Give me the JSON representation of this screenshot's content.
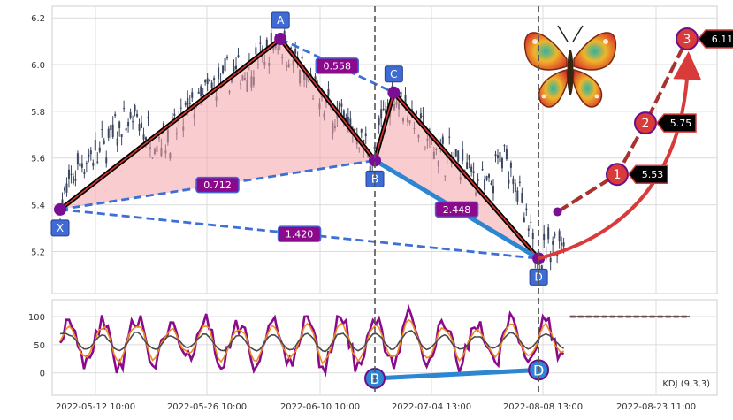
{
  "chart_data": [
    {
      "type": "candlestick",
      "title": "",
      "xlabel": "",
      "ylabel": "",
      "ylim": [
        5.02,
        6.25
      ],
      "yticks": [
        5.2,
        5.4,
        5.6,
        5.8,
        6.0,
        6.2
      ],
      "xticks": [
        "2022-05-12 10:00",
        "2022-05-26 10:00",
        "2022-06-10 10:00",
        "2022-07-04 13:00",
        "2022-08-08 13:00",
        "2022-08-23 11:00"
      ],
      "grid": true,
      "price_path": [
        {
          "t": 0.0,
          "price": 5.38
        },
        {
          "t": 0.03,
          "price": 5.58
        },
        {
          "t": 0.06,
          "price": 5.62
        },
        {
          "t": 0.09,
          "price": 5.72
        },
        {
          "t": 0.12,
          "price": 5.76
        },
        {
          "t": 0.15,
          "price": 5.68
        },
        {
          "t": 0.18,
          "price": 5.7
        },
        {
          "t": 0.21,
          "price": 5.82
        },
        {
          "t": 0.24,
          "price": 5.9
        },
        {
          "t": 0.27,
          "price": 5.95
        },
        {
          "t": 0.3,
          "price": 5.98
        },
        {
          "t": 0.33,
          "price": 6.05
        },
        {
          "t": 0.35,
          "price": 6.11
        },
        {
          "t": 0.38,
          "price": 5.98
        },
        {
          "t": 0.41,
          "price": 5.85
        },
        {
          "t": 0.44,
          "price": 5.78
        },
        {
          "t": 0.47,
          "price": 5.72
        },
        {
          "t": 0.5,
          "price": 5.59
        },
        {
          "t": 0.51,
          "price": 5.75
        },
        {
          "t": 0.53,
          "price": 5.88
        },
        {
          "t": 0.56,
          "price": 5.78
        },
        {
          "t": 0.59,
          "price": 5.65
        },
        {
          "t": 0.62,
          "price": 5.6
        },
        {
          "t": 0.65,
          "price": 5.55
        },
        {
          "t": 0.68,
          "price": 5.45
        },
        {
          "t": 0.7,
          "price": 5.6
        },
        {
          "t": 0.72,
          "price": 5.56
        },
        {
          "t": 0.74,
          "price": 5.3
        },
        {
          "t": 0.76,
          "price": 5.17
        },
        {
          "t": 0.78,
          "price": 5.24
        },
        {
          "t": 0.8,
          "price": 5.27
        }
      ],
      "pattern": {
        "points": [
          {
            "label": "X",
            "t": 0.0,
            "price": 5.38
          },
          {
            "label": "A",
            "t": 0.35,
            "price": 6.11
          },
          {
            "label": "B",
            "t": 0.5,
            "price": 5.59
          },
          {
            "label": "C",
            "t": 0.53,
            "price": 5.88
          },
          {
            "label": "D",
            "t": 0.76,
            "price": 5.17
          }
        ],
        "ratios": [
          {
            "value": "0.558",
            "from": "A",
            "to": "C"
          },
          {
            "value": "0.712",
            "from": "X",
            "to": "B"
          },
          {
            "value": "1.420",
            "from": "X",
            "to": "D"
          },
          {
            "value": "2.448",
            "from": "B",
            "to": "D"
          }
        ],
        "vertical_markers": [
          "B",
          "D"
        ]
      },
      "targets": [
        {
          "label": "1",
          "value": "5.53",
          "price": 5.53
        },
        {
          "label": "2",
          "value": "5.75",
          "price": 5.75
        },
        {
          "label": "3",
          "value": "6.11",
          "price": 6.11
        }
      ],
      "projection_start": {
        "t": 0.79,
        "price": 5.37
      },
      "colors": {
        "fill": "#f4a3a8",
        "dash": "#3d6fd6",
        "label_box": "#8b0a8b",
        "point_box": "#3e6cd4",
        "marker": "#7a0e94",
        "target": "#d93a3a",
        "candle": "#3a4660",
        "bd_line": "#2c86d1"
      }
    },
    {
      "type": "line",
      "title": "KDJ (9,3,3)",
      "ylim": [
        -40,
        130
      ],
      "yticks": [
        0,
        50,
        100
      ],
      "grid": true,
      "series": [
        {
          "name": "",
          "color": "#8b0a8b"
        },
        {
          "name": "",
          "color": "#f08a1f"
        },
        {
          "name": "",
          "color": "#4a4a4a"
        }
      ],
      "markers": [
        {
          "label": "B",
          "t": 0.5,
          "value": -10
        },
        {
          "label": "D",
          "t": 0.76,
          "value": 5
        }
      ],
      "flat_after": {
        "t": 0.81,
        "value": 100
      }
    }
  ],
  "decor": {
    "butterfly_icon": "butterfly-icon"
  }
}
